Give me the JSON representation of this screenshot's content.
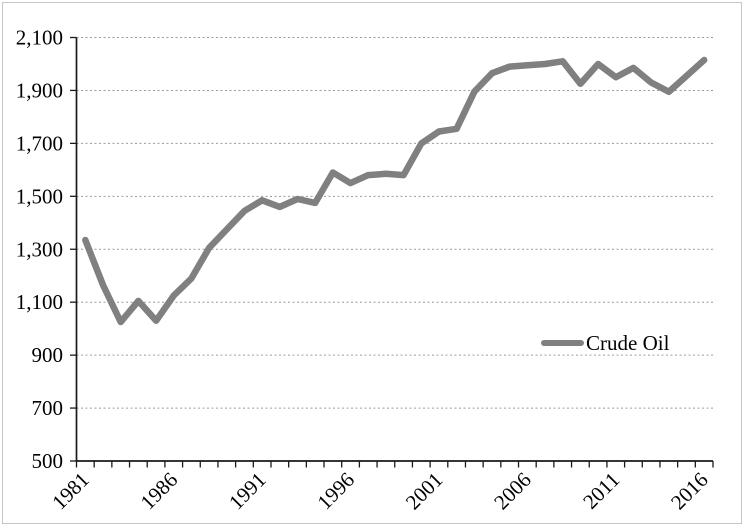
{
  "chart_data": {
    "type": "line",
    "title": "",
    "xlabel": "",
    "ylabel": "",
    "categories": [
      1981,
      1982,
      1983,
      1984,
      1985,
      1986,
      1987,
      1988,
      1989,
      1990,
      1991,
      1992,
      1993,
      1994,
      1995,
      1996,
      1997,
      1998,
      1999,
      2000,
      2001,
      2002,
      2003,
      2004,
      2005,
      2006,
      2007,
      2008,
      2009,
      2010,
      2011,
      2012,
      2013,
      2014,
      2015,
      2016
    ],
    "series": [
      {
        "name": "Crude Oil",
        "color": "#808080",
        "values": [
          1335,
          1165,
          1025,
          1105,
          1030,
          1125,
          1190,
          1305,
          1375,
          1445,
          1485,
          1460,
          1490,
          1475,
          1590,
          1550,
          1580,
          1585,
          1580,
          1700,
          1745,
          1755,
          1895,
          1965,
          1990,
          1995,
          2000,
          2010,
          1925,
          2000,
          1950,
          1985,
          1930,
          1895,
          1955,
          2015
        ]
      }
    ],
    "ylim": [
      500,
      2100
    ],
    "y_ticks": [
      500,
      700,
      900,
      1100,
      1300,
      1500,
      1700,
      1900,
      2100
    ],
    "y_tick_labels": [
      "500",
      "700",
      "900",
      "1,100",
      "1,300",
      "1,500",
      "1,700",
      "1,900",
      "2,100"
    ],
    "x_tick_labels": [
      "1981",
      "1986",
      "1991",
      "1996",
      "2001",
      "2006",
      "2011",
      "2016"
    ],
    "x_label_step": 5,
    "grid": "horizontal-dotted",
    "legend": {
      "label": "Crude Oil",
      "position": "inside-right"
    },
    "colors": {
      "series_line": "#808080",
      "gridline": "#9a9a9a",
      "axis": "#1a1a1a",
      "background": "#ffffff",
      "chart_border": "#c6c6c6"
    }
  }
}
